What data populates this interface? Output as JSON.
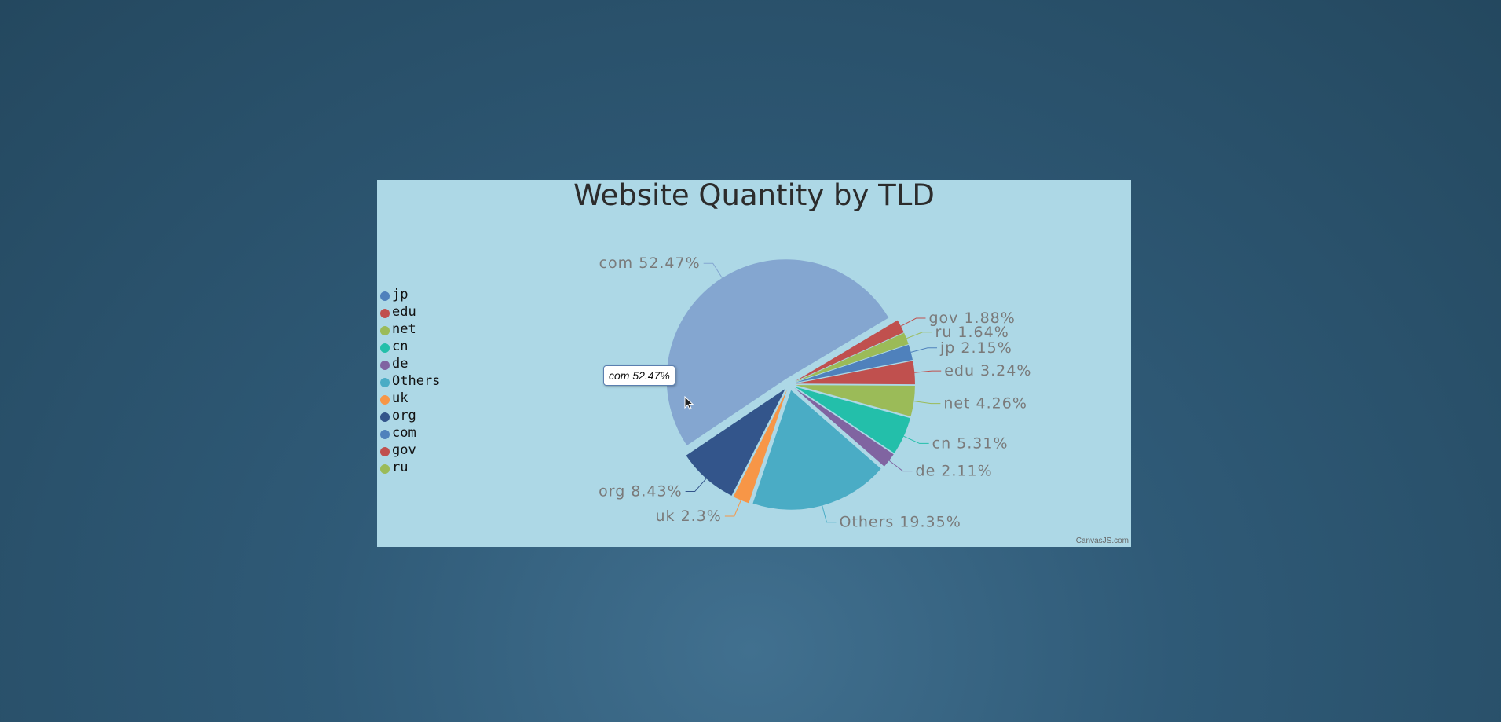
{
  "chart_data": {
    "type": "pie",
    "title": "Website Quantity by TLD",
    "slices": [
      {
        "label": "com",
        "value": 52.47,
        "display": "52.47%",
        "color": "#84a6d0",
        "exploded": true
      },
      {
        "label": "gov",
        "value": 1.88,
        "display": "1.88%",
        "color": "#c0504e",
        "exploded": true
      },
      {
        "label": "ru",
        "value": 1.64,
        "display": "1.64%",
        "color": "#9bbb58",
        "exploded": true
      },
      {
        "label": "jp",
        "value": 2.15,
        "display": "2.15%",
        "color": "#4f81bc",
        "exploded": true
      },
      {
        "label": "edu",
        "value": 3.24,
        "display": "3.24%",
        "color": "#c0504e",
        "exploded": true
      },
      {
        "label": "net",
        "value": 4.26,
        "display": "4.26%",
        "color": "#9bbb58",
        "exploded": true
      },
      {
        "label": "cn",
        "value": 5.31,
        "display": "5.31%",
        "color": "#23bfaa",
        "exploded": true
      },
      {
        "label": "de",
        "value": 2.11,
        "display": "2.11%",
        "color": "#8064a1",
        "exploded": true
      },
      {
        "label": "Others",
        "value": 19.35,
        "display": "19.35%",
        "color": "#4aacc5",
        "exploded": true
      },
      {
        "label": "uk",
        "value": 2.3,
        "display": "2.3%",
        "color": "#f79647",
        "exploded": true
      },
      {
        "label": "org",
        "value": 8.43,
        "display": "8.43%",
        "color": "#33558b",
        "exploded": true
      }
    ],
    "legend": {
      "placement": "left",
      "items": [
        {
          "label": "jp",
          "color": "#4f81bc"
        },
        {
          "label": "edu",
          "color": "#c0504e"
        },
        {
          "label": "net",
          "color": "#9bbb58"
        },
        {
          "label": "cn",
          "color": "#23bfaa"
        },
        {
          "label": "de",
          "color": "#8064a1"
        },
        {
          "label": "Others",
          "color": "#4aacc5"
        },
        {
          "label": "uk",
          "color": "#f79647"
        },
        {
          "label": "org",
          "color": "#33558b"
        },
        {
          "label": "com",
          "color": "#4f81bc"
        },
        {
          "label": "gov",
          "color": "#c0504e"
        },
        {
          "label": "ru",
          "color": "#9bbb58"
        }
      ]
    }
  },
  "tooltip": {
    "text": "com 52.47%"
  },
  "credit": "CanvasJS.com",
  "colors": {
    "chart_background": "#add8e6",
    "page_background": "#2f5a77"
  }
}
